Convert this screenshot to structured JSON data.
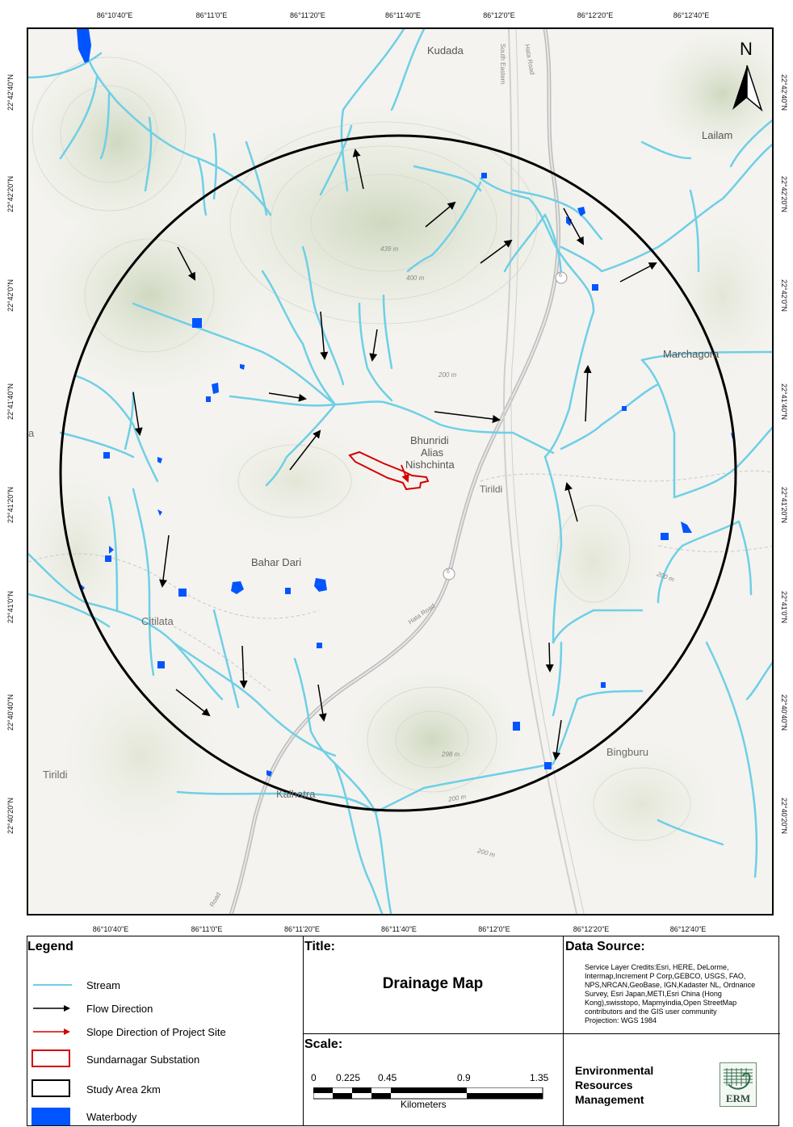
{
  "map": {
    "north_label": "N",
    "top_ticks": [
      "86°10'40\"E",
      "86°11'0\"E",
      "86°11'20\"E",
      "86°11'40\"E",
      "86°12'0\"E",
      "86°12'20\"E",
      "86°12'40\"E"
    ],
    "bottom_ticks": [
      "86°10'40\"E",
      "86°11'0\"E",
      "86°11'20\"E",
      "86°11'40\"E",
      "86°12'0\"E",
      "86°12'20\"E",
      "86°12'40\"E"
    ],
    "left_ticks": [
      "22°42'40\"N",
      "22°42'20\"N",
      "22°42'0\"N",
      "22°41'40\"N",
      "22°41'20\"N",
      "22°41'0\"N",
      "22°40'40\"N",
      "22°40'20\"N"
    ],
    "right_ticks": [
      "22°42'40\"N",
      "22°42'20\"N",
      "22°42'0\"N",
      "22°41'40\"N",
      "22°41'20\"N",
      "22°41'0\"N",
      "22°40'40\"N",
      "22°40'20\"N"
    ],
    "places": {
      "kudada": "Kudada",
      "lailam": "Lailam",
      "marchagora": "Marchagora",
      "bhunridi": "Bhunridi",
      "alias": "Alias",
      "nishchinta": "Nishchinta",
      "tirildi_center": "Tirildi",
      "bahar_dari": "Bahar Dari",
      "citilata": "Citilata",
      "bingburu": "Bingburu",
      "tirildi_west": "Tirildi",
      "kalhatra": "Kalhatra",
      "left_a": "a"
    },
    "elevations": {
      "e439": "439 m",
      "e400": "400 m",
      "e200_center": "200 m",
      "e200_east": "200 m",
      "e298": "298 m",
      "e200_south": "200 m",
      "e200_se": "200 m"
    },
    "roads": {
      "hata_road_north": "Hata Road",
      "hata_road_mid": "Hata Road",
      "road_sw": "Road",
      "south_eastern": "South Eastern",
      "route_6_a": "6",
      "route_6_b": "6"
    }
  },
  "legend": {
    "title": "Legend",
    "items": [
      {
        "label": "Stream",
        "symbol": "stream-line",
        "color": "#6ecfe6"
      },
      {
        "label": "Flow Direction",
        "symbol": "black-arrow",
        "color": "#000000"
      },
      {
        "label": "Slope Direction of Project Site",
        "symbol": "red-arrow",
        "color": "#d40000"
      },
      {
        "label": "Sundarnagar Substation",
        "symbol": "red-outline-box",
        "color": "#d40000"
      },
      {
        "label": "Study Area 2km",
        "symbol": "black-outline-box",
        "color": "#000000"
      },
      {
        "label": "Waterbody",
        "symbol": "blue-fill-box",
        "color": "#0055ff"
      }
    ]
  },
  "title_block": {
    "heading": "Title:",
    "title": "Drainage Map"
  },
  "scale_block": {
    "heading": "Scale:",
    "ticks": [
      "0",
      "0.225",
      "0.45",
      "0.9",
      "1.35"
    ],
    "units": "Kilometers"
  },
  "source_block": {
    "heading": "Data Source:",
    "credits": "Service Layer Credits:Esri, HERE, DeLorme, Intermap,Increment P Corp,GEBCO, USGS, FAO, NPS,NRCAN,GeoBase, IGN,Kadaster NL, Ordnance Survey, Esri Japan,METI,Esri China (Hong Kong),swisstopo, Mapmyindia,Open StreetMap contributors and the GIS user community",
    "projection": "Projection: WGS 1984"
  },
  "org_block": {
    "line1": "Environmental",
    "line2": "Resources",
    "line3": "Management",
    "logo_text": "ERM"
  }
}
